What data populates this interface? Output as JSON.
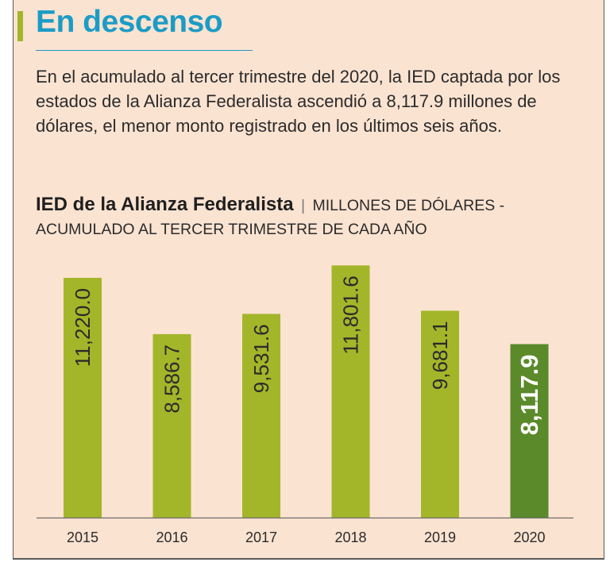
{
  "header": {
    "title": "En descenso",
    "lead": "En el acumulado al tercer trimestre del 2020, la IED captada por los estados de la Alianza Federalista ascendió a 8,117.9 millones de dólares, el menor monto registrado en los últimos seis años."
  },
  "chart_heading": {
    "main": "IED de la Alianza Federalista",
    "separator": "|",
    "subtitle": "Millones de dólares - Acumulado al tercer trimestre de cada año"
  },
  "colors": {
    "background": "#fbe3d1",
    "bar": "#a3b62a",
    "highlight_bar": "#5b8a2a",
    "title": "#1b9cc6",
    "text": "#2b2b2b"
  },
  "chart_data": {
    "type": "bar",
    "categories": [
      "2015",
      "2016",
      "2017",
      "2018",
      "2019",
      "2020"
    ],
    "values": [
      11220.0,
      8586.7,
      9531.6,
      11801.6,
      9681.1,
      8117.9
    ],
    "value_labels": [
      "11,220.0",
      "8,586.7",
      "9,531.6",
      "11,801.6",
      "9,681.1",
      "8,117.9"
    ],
    "highlight_index": 5,
    "ylim": [
      0,
      12000
    ],
    "grid": false,
    "legend": "none"
  }
}
